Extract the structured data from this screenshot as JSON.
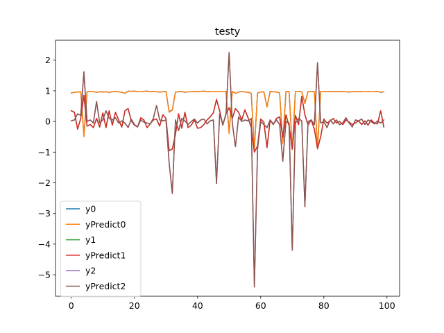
{
  "chart_data": {
    "type": "line",
    "title": "testy",
    "xlabel": "",
    "ylabel": "",
    "xlim": [
      -5,
      104
    ],
    "ylim": [
      -5.7,
      2.65
    ],
    "xticks": [
      0,
      20,
      40,
      60,
      80,
      100
    ],
    "yticks": [
      -5,
      -4,
      -3,
      -2,
      -1,
      0,
      1,
      2
    ],
    "grid": false,
    "legend_position": "lower-left",
    "series": [
      {
        "name": "y0",
        "color": "#1f77b4",
        "values": [
          0.93,
          0.95,
          0.96,
          0.97,
          -0.45,
          0.97,
          0.98,
          0.98,
          0.95,
          0.97,
          0.96,
          0.97,
          0.95,
          0.97,
          0.98,
          0.97,
          0.95,
          0.92,
          0.99,
          0.98,
          0.99,
          0.97,
          0.97,
          0.98,
          0.99,
          0.97,
          0.98,
          0.97,
          0.96,
          0.97,
          0.98,
          0.32,
          0.38,
          0.96,
          0.97,
          0.98,
          0.95,
          0.97,
          0.97,
          0.98,
          0.97,
          0.98,
          0.99,
          0.97,
          0.98,
          0.98,
          0.98,
          0.98,
          0.98,
          0.98,
          -0.35,
          0.98,
          0.92,
          0.96,
          0.98,
          0.96,
          0.95,
          0.92,
          -0.88,
          0.93,
          0.96,
          0.97,
          0.48,
          0.98,
          0.97,
          0.96,
          0.93,
          -0.7,
          0.97,
          0.98,
          -0.9,
          0.98,
          0.98,
          0.97,
          0.6,
          0.98,
          0.98,
          0.97,
          -0.88,
          0.98,
          0.98,
          0.97,
          0.98,
          0.97,
          0.98,
          0.97,
          0.98,
          0.97,
          0.96,
          0.97,
          0.98,
          0.97,
          0.98,
          0.98,
          0.98,
          0.97,
          0.97,
          0.98,
          0.95,
          0.97
        ]
      },
      {
        "name": "yPredict0",
        "color": "#ff7f0e",
        "values": [
          0.93,
          0.95,
          0.96,
          0.97,
          -0.5,
          0.97,
          0.98,
          0.98,
          0.95,
          0.97,
          0.96,
          0.97,
          0.95,
          0.97,
          0.98,
          0.97,
          0.95,
          0.92,
          0.99,
          0.98,
          0.99,
          0.97,
          0.97,
          0.98,
          0.99,
          0.97,
          0.98,
          0.97,
          0.96,
          0.97,
          0.98,
          0.3,
          0.37,
          0.96,
          0.97,
          0.98,
          0.95,
          0.97,
          0.97,
          0.98,
          0.97,
          0.98,
          0.99,
          0.97,
          0.98,
          0.98,
          0.98,
          0.98,
          0.98,
          0.98,
          -0.4,
          0.98,
          0.92,
          0.96,
          0.98,
          0.96,
          0.95,
          0.92,
          -0.9,
          0.93,
          0.96,
          0.97,
          0.47,
          0.98,
          0.97,
          0.96,
          0.93,
          -0.72,
          0.97,
          0.98,
          -0.92,
          0.98,
          0.98,
          0.97,
          0.58,
          0.98,
          0.98,
          0.97,
          -0.9,
          0.98,
          0.98,
          0.97,
          0.98,
          0.97,
          0.98,
          0.97,
          0.98,
          0.97,
          0.96,
          0.97,
          0.98,
          0.97,
          0.98,
          0.98,
          0.98,
          0.97,
          0.97,
          0.98,
          0.95,
          0.97
        ]
      },
      {
        "name": "y1",
        "color": "#2ca02c",
        "values": [
          0.35,
          0.3,
          -0.25,
          0.1,
          0.85,
          -0.15,
          -0.1,
          -0.2,
          0.1,
          -0.18,
          0.28,
          -0.2,
          0.35,
          -0.12,
          0.3,
          0.05,
          -0.18,
          0.35,
          0.42,
          0.02,
          -0.12,
          -0.18,
          0.12,
          0.05,
          -0.2,
          -0.08,
          0.05,
          0.08,
          -0.15,
          0.22,
          0.1,
          -0.95,
          -0.9,
          -0.42,
          0.25,
          -0.22,
          0.3,
          -0.2,
          -0.12,
          0.05,
          -0.22,
          -0.2,
          -0.1,
          0.05,
          0.15,
          0.28,
          0.72,
          0.35,
          -0.12,
          0.25,
          0.45,
          0.1,
          0.42,
          0.3,
          0.05,
          0.38,
          0.12,
          -0.2,
          -1.0,
          -0.8,
          0.08,
          -0.02,
          -0.85,
          0.05,
          -0.1,
          0.1,
          0.15,
          -0.52,
          0.22,
          -0.15,
          -0.9,
          0.2,
          -0.1,
          0.82,
          0.22,
          -0.12,
          0.05,
          -0.25,
          -0.88,
          -0.5,
          0.08,
          -0.05,
          0.02,
          0.1,
          -0.05,
          0.0,
          -0.1,
          0.05,
          -0.02,
          -0.1,
          -0.05,
          0.02,
          -0.1,
          0.02,
          -0.12,
          0.05,
          -0.05,
          -0.08,
          0.35,
          -0.18
        ]
      },
      {
        "name": "yPredict1",
        "color": "#d62728",
        "values": [
          0.35,
          0.3,
          -0.25,
          0.1,
          0.85,
          -0.15,
          -0.1,
          -0.2,
          0.1,
          -0.18,
          0.28,
          -0.2,
          0.35,
          -0.12,
          0.3,
          0.05,
          -0.18,
          0.35,
          0.42,
          0.02,
          -0.12,
          -0.18,
          0.12,
          0.05,
          -0.2,
          -0.08,
          0.05,
          0.08,
          -0.15,
          0.22,
          0.1,
          -0.95,
          -0.9,
          -0.42,
          0.25,
          -0.22,
          0.3,
          -0.2,
          -0.12,
          0.05,
          -0.22,
          -0.2,
          -0.1,
          0.05,
          0.15,
          0.28,
          0.72,
          0.35,
          -0.12,
          0.25,
          0.45,
          0.1,
          0.42,
          0.3,
          0.05,
          0.38,
          0.12,
          -0.2,
          -1.0,
          -0.8,
          0.08,
          -0.02,
          -0.85,
          0.05,
          -0.1,
          0.1,
          0.15,
          -0.52,
          0.22,
          -0.15,
          -0.9,
          0.2,
          -0.1,
          0.82,
          0.22,
          -0.12,
          0.05,
          -0.25,
          -0.88,
          -0.5,
          0.08,
          -0.05,
          0.02,
          0.1,
          -0.05,
          0.0,
          -0.1,
          0.05,
          -0.02,
          -0.1,
          -0.05,
          0.02,
          -0.1,
          0.02,
          -0.12,
          0.05,
          -0.05,
          -0.08,
          0.35,
          -0.18
        ]
      },
      {
        "name": "y2",
        "color": "#9467bd",
        "values": [
          0.02,
          0.05,
          0.25,
          0.2,
          1.62,
          0.0,
          0.05,
          -0.05,
          0.65,
          -0.05,
          0.05,
          0.35,
          0.1,
          0.05,
          0.12,
          -0.05,
          0.02,
          -0.05,
          -0.2,
          0.08,
          -0.1,
          -0.18,
          0.05,
          -0.02,
          -0.05,
          -0.08,
          0.1,
          0.52,
          0.05,
          0.02,
          0.05,
          -1.35,
          -2.35,
          0.05,
          -0.3,
          0.1,
          0.02,
          -0.1,
          0.0,
          0.08,
          -0.05,
          0.05,
          0.08,
          -0.08,
          0.02,
          0.05,
          -2.02,
          0.25,
          -0.1,
          0.22,
          2.25,
          -0.05,
          -0.82,
          0.15,
          0.0,
          0.05,
          0.02,
          0.1,
          -5.4,
          -0.9,
          0.0,
          -0.1,
          -0.2,
          0.05,
          -0.08,
          0.05,
          -0.1,
          -1.3,
          0.0,
          -0.05,
          -4.2,
          -0.05,
          0.1,
          0.02,
          -2.78,
          0.0,
          0.05,
          -0.1,
          1.92,
          -0.05,
          0.0,
          -0.2,
          0.05,
          -0.08,
          0.05,
          -0.1,
          -0.05,
          0.12,
          -0.05,
          -0.18,
          0.05,
          0.02,
          0.08,
          -0.1,
          0.05,
          0.0,
          -0.08,
          0.02,
          -0.05,
          0.05
        ]
      },
      {
        "name": "yPredict2",
        "color": "#8c564b",
        "values": [
          0.02,
          0.05,
          0.25,
          0.2,
          1.62,
          0.0,
          0.05,
          -0.05,
          0.65,
          -0.05,
          0.05,
          0.35,
          0.1,
          0.05,
          0.12,
          -0.05,
          0.02,
          -0.05,
          -0.2,
          0.08,
          -0.1,
          -0.18,
          0.05,
          -0.02,
          -0.05,
          -0.08,
          0.1,
          0.52,
          0.05,
          0.02,
          0.05,
          -1.35,
          -2.35,
          0.05,
          -0.3,
          0.1,
          0.02,
          -0.1,
          0.0,
          0.08,
          -0.05,
          0.05,
          0.08,
          -0.08,
          0.02,
          0.05,
          -2.02,
          0.25,
          -0.1,
          0.22,
          2.25,
          -0.05,
          -0.82,
          0.15,
          0.0,
          0.05,
          0.02,
          0.1,
          -5.4,
          -0.9,
          0.0,
          -0.1,
          -0.2,
          0.05,
          -0.08,
          0.05,
          -0.1,
          -1.3,
          0.0,
          -0.05,
          -4.2,
          -0.05,
          0.1,
          0.02,
          -2.78,
          0.0,
          0.05,
          -0.1,
          1.92,
          -0.05,
          0.0,
          -0.2,
          0.05,
          -0.08,
          0.05,
          -0.1,
          -0.05,
          0.12,
          -0.05,
          -0.18,
          0.05,
          0.02,
          0.08,
          -0.1,
          0.05,
          0.0,
          -0.08,
          0.02,
          -0.05,
          0.05
        ]
      }
    ]
  }
}
